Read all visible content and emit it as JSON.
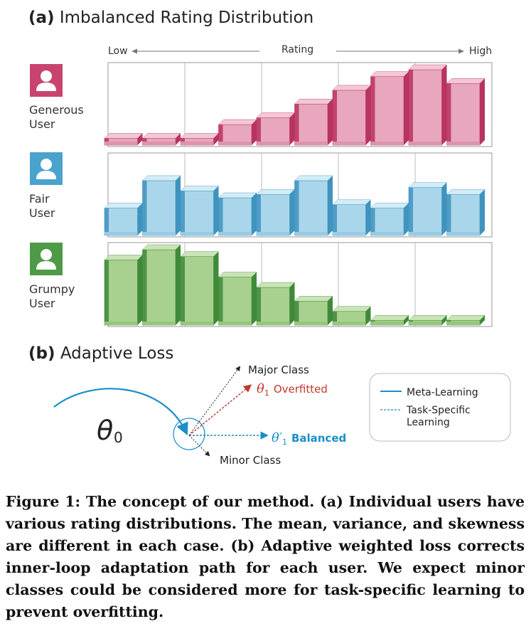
{
  "section_a": {
    "tag": "(a)",
    "title": "Imbalanced Rating Distribution"
  },
  "axis": {
    "low": "Low",
    "label": "Rating",
    "high": "High"
  },
  "users": [
    {
      "label_line1": "Generous",
      "label_line2": "User",
      "icon": "user-avatar-icon",
      "color": "#c8446f"
    },
    {
      "label_line1": "Fair",
      "label_line2": "User",
      "icon": "user-avatar-icon",
      "color": "#4aa3cc"
    },
    {
      "label_line1": "Grumpy",
      "label_line2": "User",
      "icon": "user-avatar-icon",
      "color": "#4f9a46"
    }
  ],
  "chart_data": [
    {
      "type": "bar",
      "title": "",
      "series": [
        {
          "values": [
            1,
            1,
            1,
            3,
            4,
            6,
            8,
            10,
            11,
            9
          ]
        }
      ],
      "ylim": [
        0,
        11
      ]
    },
    {
      "type": "bar",
      "title": "",
      "series": [
        {
          "values": [
            4,
            8,
            6.5,
            5.5,
            6,
            8,
            4.5,
            4,
            7,
            6
          ]
        }
      ],
      "ylim": [
        0,
        11
      ]
    },
    {
      "type": "bar",
      "title": "",
      "series": [
        {
          "values": [
            9.5,
            11,
            10,
            7,
            5.5,
            3.5,
            2,
            0.7,
            0.7,
            0.7
          ]
        }
      ],
      "ylim": [
        0,
        11
      ]
    }
  ],
  "section_b": {
    "tag": "(b)",
    "title": "Adaptive Loss"
  },
  "diagram": {
    "theta0": "θ0",
    "major": "Major Class",
    "overfitted": "θ1 Overfitted",
    "balanced": "θ′1 Balanced",
    "minor": "Minor Class",
    "legend_meta": "Meta-Learning",
    "legend_task_line1": "Task-Specific",
    "legend_task_line2": "Learning"
  },
  "caption": "Figure 1: The concept of our method. (a) Individual users have various rating distributions. The mean, variance, and skewness are different in each case. (b) Adaptive weighted loss corrects inner-loop adaptation path for each user. We expect minor classes could be considered more for task-specific learning to prevent overfitting."
}
